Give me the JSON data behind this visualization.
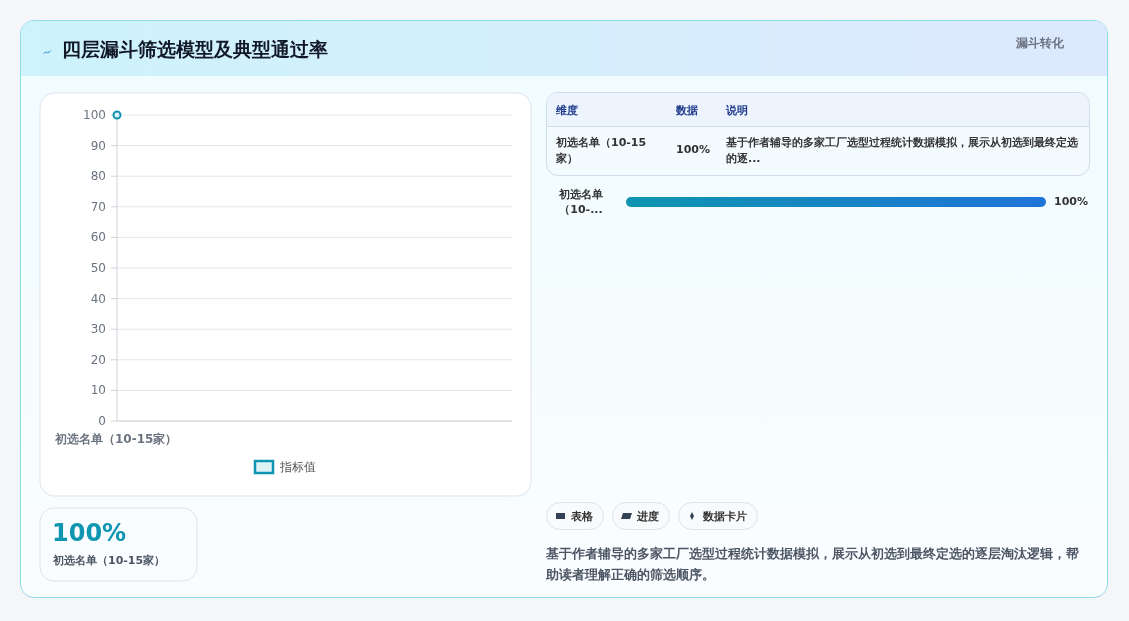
{
  "chart_data": [
    {
      "type": "line",
      "title": "四层漏斗筛选模型及典型通过率",
      "categories": [
        "初选名单（10-15家）"
      ],
      "series": [
        {
          "name": "指标值",
          "color": "#0e95b0",
          "values": [
            100
          ]
        }
      ],
      "ylim": [
        0,
        100
      ],
      "yticks": [
        0,
        10,
        20,
        30,
        40,
        50,
        60,
        70,
        80,
        90,
        100
      ],
      "grid": "y",
      "legend": "bottom",
      "marker": "circle",
      "annotations": [
        "100%",
        "初选名单（10-15家）"
      ]
    },
    {
      "type": "bar",
      "orientation": "horizontal",
      "title": "漏斗转化",
      "categories": [
        "初选名单（10-..."
      ],
      "values": [
        100
      ],
      "value_labels": [
        "100%"
      ],
      "color": "#1f74d8",
      "annotations": [
        "维度",
        "数据",
        "说明",
        "初选名单（10-15家）",
        "100%",
        "基于作者辅导的多家工厂选型过程统计数据模拟，展示从初选到最终定选的逐...",
        "表格",
        "进度",
        "数据卡片",
        "基于作者辅导的多家工厂选型过程统计数据模拟，展示从初选到最终定选的逐层淘汰逻辑，帮助读者理解正确的筛选顺序。"
      ]
    }
  ]
}
